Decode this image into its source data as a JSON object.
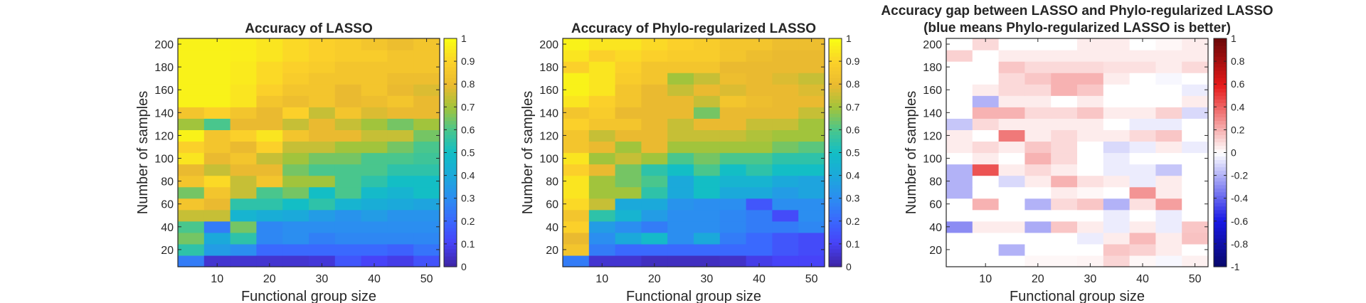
{
  "chart_data": [
    {
      "type": "heatmap",
      "title": "Accuracy of LASSO",
      "xlabel": "Functional group size",
      "ylabel": "Number of samples",
      "x": [
        5,
        10,
        15,
        20,
        25,
        30,
        35,
        40,
        45,
        50
      ],
      "y": [
        10,
        20,
        30,
        40,
        50,
        60,
        70,
        80,
        90,
        100,
        110,
        120,
        130,
        140,
        150,
        160,
        170,
        180,
        190,
        200
      ],
      "xlim": [
        2.5,
        52.5
      ],
      "ylim": [
        5,
        205
      ],
      "xticks": [
        10,
        20,
        30,
        40,
        50
      ],
      "yticks": [
        20,
        40,
        60,
        80,
        100,
        120,
        140,
        160,
        180,
        200
      ],
      "colorbar": {
        "colormap": "parula",
        "clim": [
          0,
          1
        ],
        "ticks": [
          "0",
          "0.1",
          "0.2",
          "0.3",
          "0.4",
          "0.5",
          "0.6",
          "0.7",
          "0.8",
          "0.9",
          "1"
        ]
      },
      "values": [
        [
          0.25,
          0.05,
          0.05,
          0.05,
          0.05,
          0.06,
          0.15,
          0.1,
          0.08,
          0.14
        ],
        [
          0.55,
          0.35,
          0.3,
          0.2,
          0.2,
          0.2,
          0.2,
          0.2,
          0.18,
          0.23
        ],
        [
          0.65,
          0.4,
          0.55,
          0.28,
          0.3,
          0.26,
          0.28,
          0.28,
          0.28,
          0.28
        ],
        [
          0.6,
          0.25,
          0.65,
          0.28,
          0.3,
          0.3,
          0.3,
          0.3,
          0.3,
          0.3
        ],
        [
          0.75,
          0.75,
          0.45,
          0.42,
          0.4,
          0.35,
          0.32,
          0.35,
          0.32,
          0.32
        ],
        [
          0.85,
          0.8,
          0.55,
          0.55,
          0.5,
          0.55,
          0.45,
          0.42,
          0.4,
          0.38
        ],
        [
          0.65,
          0.85,
          0.75,
          0.6,
          0.65,
          0.5,
          0.6,
          0.48,
          0.45,
          0.5
        ],
        [
          0.85,
          0.92,
          0.75,
          0.85,
          0.7,
          0.7,
          0.6,
          0.55,
          0.5,
          0.5
        ],
        [
          0.8,
          0.75,
          0.8,
          0.8,
          0.65,
          0.6,
          0.6,
          0.6,
          0.55,
          0.55
        ],
        [
          0.95,
          0.8,
          0.85,
          0.75,
          0.7,
          0.65,
          0.65,
          0.6,
          0.6,
          0.58
        ],
        [
          0.9,
          0.85,
          0.8,
          0.9,
          0.75,
          0.75,
          0.7,
          0.7,
          0.65,
          0.6
        ],
        [
          0.98,
          0.85,
          0.9,
          0.95,
          0.85,
          0.8,
          0.8,
          0.75,
          0.75,
          0.65
        ],
        [
          0.7,
          0.6,
          0.8,
          0.8,
          0.75,
          0.8,
          0.75,
          0.7,
          0.65,
          0.7
        ],
        [
          0.85,
          0.9,
          0.85,
          0.8,
          0.9,
          0.75,
          0.85,
          0.78,
          0.8,
          0.8
        ],
        [
          0.98,
          0.98,
          0.95,
          0.85,
          0.82,
          0.85,
          0.8,
          0.82,
          0.85,
          0.8
        ],
        [
          0.98,
          0.98,
          0.95,
          0.9,
          0.85,
          0.85,
          0.8,
          0.85,
          0.8,
          0.78
        ],
        [
          0.98,
          0.98,
          0.96,
          0.92,
          0.88,
          0.85,
          0.85,
          0.85,
          0.82,
          0.82
        ],
        [
          0.98,
          0.98,
          0.96,
          0.92,
          0.9,
          0.88,
          0.85,
          0.85,
          0.85,
          0.85
        ],
        [
          0.98,
          0.98,
          0.97,
          0.95,
          0.92,
          0.9,
          0.88,
          0.88,
          0.85,
          0.85
        ],
        [
          0.98,
          0.98,
          0.97,
          0.95,
          0.92,
          0.9,
          0.88,
          0.85,
          0.82,
          0.85
        ]
      ]
    },
    {
      "type": "heatmap",
      "title": "Accuracy of Phylo-regularized LASSO",
      "xlabel": "Functional group size",
      "ylabel": "Number of samples",
      "x": [
        5,
        10,
        15,
        20,
        25,
        30,
        35,
        40,
        45,
        50
      ],
      "y": [
        10,
        20,
        30,
        40,
        50,
        60,
        70,
        80,
        90,
        100,
        110,
        120,
        130,
        140,
        150,
        160,
        170,
        180,
        190,
        200
      ],
      "xlim": [
        2.5,
        52.5
      ],
      "ylim": [
        5,
        205
      ],
      "xticks": [
        10,
        20,
        30,
        40,
        50
      ],
      "yticks": [
        20,
        40,
        60,
        80,
        100,
        120,
        140,
        160,
        180,
        200
      ],
      "colorbar": {
        "colormap": "parula",
        "clim": [
          0,
          1
        ],
        "ticks": [
          "0",
          "0.1",
          "0.2",
          "0.3",
          "0.4",
          "0.5",
          "0.6",
          "0.7",
          "0.8",
          "0.9",
          "1"
        ]
      },
      "values": [
        [
          0.25,
          0.05,
          0.05,
          0.03,
          0.03,
          0.03,
          0.04,
          0.08,
          0.1,
          0.1
        ],
        [
          0.85,
          0.25,
          0.2,
          0.2,
          0.2,
          0.2,
          0.2,
          0.2,
          0.15,
          0.12
        ],
        [
          0.8,
          0.3,
          0.4,
          0.48,
          0.3,
          0.4,
          0.25,
          0.2,
          0.15,
          0.12
        ],
        [
          0.9,
          0.35,
          0.3,
          0.25,
          0.3,
          0.3,
          0.28,
          0.25,
          0.25,
          0.28
        ],
        [
          0.85,
          0.55,
          0.45,
          0.35,
          0.3,
          0.3,
          0.28,
          0.25,
          0.12,
          0.3
        ],
        [
          0.92,
          0.75,
          0.4,
          0.4,
          0.32,
          0.3,
          0.3,
          0.15,
          0.3,
          0.3
        ],
        [
          0.95,
          0.7,
          0.7,
          0.55,
          0.4,
          0.5,
          0.4,
          0.4,
          0.35,
          0.38
        ],
        [
          0.95,
          0.7,
          0.65,
          0.6,
          0.4,
          0.5,
          0.45,
          0.45,
          0.4,
          0.38
        ],
        [
          0.9,
          0.8,
          0.65,
          0.55,
          0.5,
          0.6,
          0.5,
          0.55,
          0.5,
          0.5
        ],
        [
          0.95,
          0.7,
          0.75,
          0.7,
          0.6,
          0.65,
          0.6,
          0.6,
          0.55,
          0.55
        ],
        [
          0.85,
          0.8,
          0.7,
          0.8,
          0.7,
          0.7,
          0.7,
          0.7,
          0.65,
          0.62
        ],
        [
          0.85,
          0.75,
          0.8,
          0.8,
          0.75,
          0.75,
          0.75,
          0.72,
          0.7,
          0.7
        ],
        [
          0.9,
          0.85,
          0.85,
          0.8,
          0.75,
          0.8,
          0.8,
          0.75,
          0.75,
          0.7
        ],
        [
          0.85,
          0.88,
          0.8,
          0.8,
          0.8,
          0.65,
          0.8,
          0.8,
          0.8,
          0.75
        ],
        [
          0.95,
          0.9,
          0.85,
          0.8,
          0.8,
          0.75,
          0.85,
          0.82,
          0.8,
          0.8
        ],
        [
          0.98,
          0.95,
          0.85,
          0.8,
          0.75,
          0.8,
          0.78,
          0.8,
          0.8,
          0.78
        ],
        [
          0.98,
          0.95,
          0.88,
          0.85,
          0.7,
          0.75,
          0.82,
          0.8,
          0.78,
          0.75
        ],
        [
          0.9,
          0.95,
          0.9,
          0.85,
          0.85,
          0.85,
          0.8,
          0.8,
          0.8,
          0.8
        ],
        [
          0.95,
          0.9,
          0.92,
          0.9,
          0.88,
          0.88,
          0.85,
          0.82,
          0.8,
          0.8
        ],
        [
          0.98,
          0.95,
          0.95,
          0.92,
          0.9,
          0.88,
          0.85,
          0.85,
          0.82,
          0.82
        ]
      ]
    },
    {
      "type": "heatmap",
      "title": "Accuracy gap between LASSO and Phylo-regularized LASSO",
      "subtitle": "(blue means Phylo-regularized LASSO is better)",
      "xlabel": "Functional group size",
      "ylabel": "Number of samples",
      "x": [
        5,
        10,
        15,
        20,
        25,
        30,
        35,
        40,
        45,
        50
      ],
      "y": [
        10,
        20,
        30,
        40,
        50,
        60,
        70,
        80,
        90,
        100,
        110,
        120,
        130,
        140,
        150,
        160,
        170,
        180,
        190,
        200
      ],
      "xlim": [
        2.5,
        52.5
      ],
      "ylim": [
        5,
        205
      ],
      "xticks": [
        10,
        20,
        30,
        40,
        50
      ],
      "yticks": [
        20,
        40,
        60,
        80,
        100,
        120,
        140,
        160,
        180,
        200
      ],
      "colorbar": {
        "colormap": "blue-white-red",
        "clim": [
          -1,
          1
        ],
        "ticks": [
          "-1",
          "-0.8",
          "-0.6",
          "-0.4",
          "-0.2",
          "0",
          "0.2",
          "0.4",
          "0.6",
          "0.8",
          "1"
        ]
      },
      "values": [
        [
          0.0,
          0.0,
          0.0,
          0.02,
          0.02,
          0.03,
          0.11,
          0.02,
          -0.02,
          0.04
        ],
        [
          0.0,
          0.0,
          -0.2,
          0.0,
          0.0,
          0.0,
          0.15,
          0.12,
          0.05,
          0.0
        ],
        [
          0.0,
          0.0,
          0.0,
          0.0,
          0.0,
          -0.05,
          0.05,
          0.18,
          0.05,
          0.16
        ],
        [
          -0.3,
          0.05,
          0.05,
          -0.22,
          0.15,
          0.05,
          -0.05,
          0.05,
          -0.05,
          0.15
        ],
        [
          0.0,
          0.0,
          0.0,
          0.0,
          0.0,
          0.0,
          -0.05,
          0.0,
          -0.05,
          0.0
        ],
        [
          0.0,
          0.2,
          0.0,
          -0.2,
          0.1,
          0.15,
          -0.2,
          0.08,
          0.25,
          0.0
        ],
        [
          -0.2,
          0.0,
          0.0,
          0.0,
          0.05,
          0.02,
          0.0,
          0.28,
          0.05,
          0.0
        ],
        [
          -0.2,
          0.0,
          -0.1,
          0.05,
          0.2,
          0.08,
          0.05,
          -0.05,
          0.05,
          0.0
        ],
        [
          -0.2,
          0.45,
          0.05,
          0.1,
          0.05,
          0.0,
          -0.05,
          -0.05,
          -0.15,
          0.0
        ],
        [
          0.0,
          0.05,
          0.0,
          0.2,
          0.1,
          0.0,
          -0.05,
          0.0,
          0.0,
          0.0
        ],
        [
          0.05,
          0.1,
          0.05,
          0.15,
          0.1,
          0.0,
          -0.1,
          -0.05,
          0.05,
          -0.05
        ],
        [
          0.05,
          0.0,
          0.35,
          0.05,
          0.1,
          0.05,
          0.05,
          0.1,
          0.15,
          0.0
        ],
        [
          -0.15,
          0.1,
          0.05,
          0.05,
          0.05,
          0.05,
          0.0,
          -0.05,
          -0.05,
          0.0
        ],
        [
          0.0,
          0.2,
          0.2,
          0.1,
          0.1,
          0.15,
          0.05,
          0.05,
          0.12,
          -0.1
        ],
        [
          0.0,
          -0.2,
          0.05,
          0.05,
          0.0,
          0.05,
          0.0,
          0.0,
          0.0,
          0.05
        ],
        [
          0.0,
          0.05,
          0.1,
          0.1,
          0.2,
          0.15,
          0.0,
          0.0,
          0.0,
          -0.05
        ],
        [
          0.0,
          0.0,
          0.1,
          0.15,
          0.2,
          0.2,
          0.05,
          0.0,
          -0.02,
          0.0
        ],
        [
          0.0,
          0.0,
          0.15,
          0.1,
          0.1,
          0.1,
          0.08,
          0.08,
          0.05,
          0.1
        ],
        [
          0.12,
          0.0,
          0.05,
          0.05,
          0.05,
          0.05,
          0.05,
          0.05,
          0.05,
          0.05
        ],
        [
          0.0,
          0.1,
          0.0,
          0.0,
          0.0,
          0.05,
          0.05,
          0.0,
          0.02,
          0.05
        ]
      ]
    }
  ]
}
